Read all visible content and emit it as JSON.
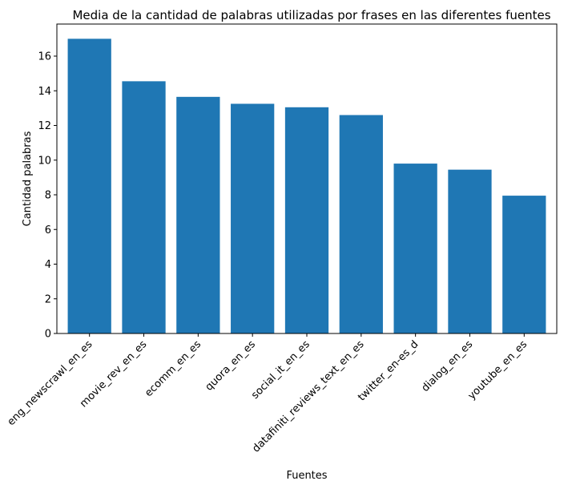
{
  "chart_data": {
    "type": "bar",
    "title": "Media de la cantidad de palabras utilizadas por frases en las diferentes fuentes",
    "xlabel": "Fuentes",
    "ylabel": "Cantidad palabras",
    "categories": [
      "eng_newscrawl_en_es",
      "movie_rev_en_es",
      "ecomm_en_es",
      "quora_en_es",
      "social_it_en_es",
      "datafiniti_reviews_text_en_es",
      "twitter_en-es_d",
      "dialog_en_es",
      "youtube_en_es"
    ],
    "values": [
      17.0,
      14.55,
      13.65,
      13.25,
      13.05,
      12.6,
      9.8,
      9.45,
      7.95
    ],
    "ylim": [
      0,
      17.85
    ],
    "yticks": [
      0,
      2,
      4,
      6,
      8,
      10,
      12,
      14,
      16
    ],
    "grid": false,
    "bar_color": "#1f77b4"
  }
}
